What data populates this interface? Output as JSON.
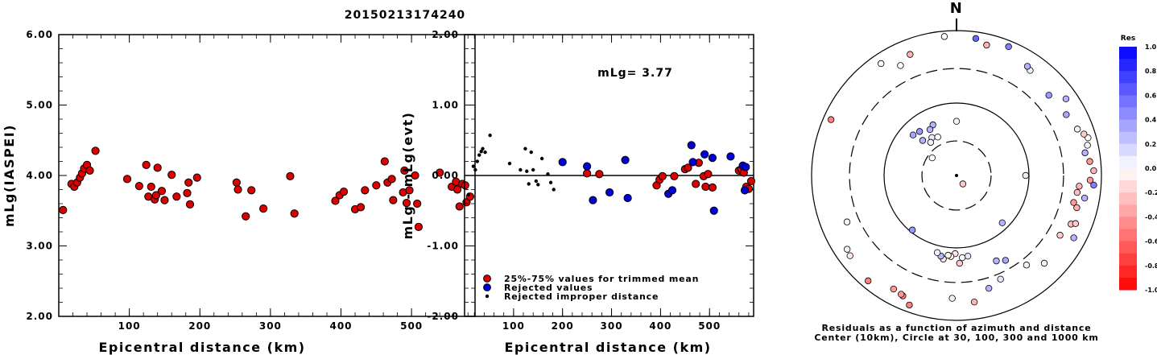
{
  "figure": {
    "title": "20150213174240"
  },
  "chart_data": [
    {
      "type": "scatter",
      "ylabel": "mLg(IASPEI)",
      "xlabel": "Epicentral distance (km)",
      "xlim": [
        0,
        590
      ],
      "ylim": [
        2.0,
        6.0
      ],
      "xticks": [
        {
          "v": 100,
          "label": "100"
        },
        {
          "v": 200,
          "label": "200"
        },
        {
          "v": 300,
          "label": "300"
        },
        {
          "v": 400,
          "label": "400"
        },
        {
          "v": 500,
          "label": "500"
        }
      ],
      "yticks": [
        {
          "v": 2,
          "label": "2.00"
        },
        {
          "v": 3,
          "label": "3.00"
        },
        {
          "v": 4,
          "label": "4.00"
        },
        {
          "v": 5,
          "label": "5.00"
        },
        {
          "v": 6,
          "label": "6.00"
        }
      ],
      "series": [
        {
          "color": "#dd0000",
          "points": [
            [
              6,
              3.51
            ],
            [
              18,
              3.88
            ],
            [
              22,
              3.84
            ],
            [
              26,
              3.9
            ],
            [
              30,
              3.97
            ],
            [
              33,
              4.03
            ],
            [
              36,
              4.1
            ],
            [
              40,
              4.15
            ],
            [
              44,
              4.07
            ],
            [
              52,
              4.35
            ],
            [
              97,
              3.95
            ],
            [
              114,
              3.85
            ],
            [
              124,
              4.15
            ],
            [
              127,
              3.7
            ],
            [
              131,
              3.84
            ],
            [
              136,
              3.66
            ],
            [
              138,
              3.72
            ],
            [
              140,
              4.11
            ],
            [
              146,
              3.78
            ],
            [
              150,
              3.65
            ],
            [
              160,
              4.01
            ],
            [
              167,
              3.7
            ],
            [
              182,
              3.75
            ],
            [
              184,
              3.9
            ],
            [
              186,
              3.59
            ],
            [
              196,
              3.97
            ],
            [
              252,
              3.9
            ],
            [
              254,
              3.8
            ],
            [
              265,
              3.42
            ],
            [
              273,
              3.79
            ],
            [
              290,
              3.53
            ],
            [
              328,
              3.99
            ],
            [
              334,
              3.46
            ],
            [
              392,
              3.64
            ],
            [
              398,
              3.72
            ],
            [
              404,
              3.77
            ],
            [
              420,
              3.52
            ],
            [
              428,
              3.55
            ],
            [
              434,
              3.79
            ],
            [
              450,
              3.86
            ],
            [
              462,
              4.2
            ],
            [
              466,
              3.9
            ],
            [
              472,
              3.95
            ],
            [
              474,
              3.65
            ],
            [
              488,
              3.76
            ],
            [
              490,
              4.07
            ],
            [
              493,
              3.61
            ],
            [
              497,
              3.79
            ],
            [
              505,
              4.0
            ],
            [
              508,
              3.6
            ],
            [
              510,
              3.27
            ],
            [
              540,
              4.04
            ],
            [
              557,
              3.84
            ],
            [
              563,
              3.91
            ],
            [
              565,
              3.8
            ],
            [
              568,
              3.56
            ],
            [
              572,
              3.88
            ],
            [
              576,
              3.86
            ],
            [
              578,
              3.62
            ],
            [
              583,
              3.7
            ]
          ]
        }
      ]
    },
    {
      "type": "scatter",
      "ylabel": "mLg - mLg(evt)",
      "xlabel": "Epicentral distance (km)",
      "xlim": [
        0,
        590
      ],
      "ylim": [
        -2.0,
        2.0
      ],
      "xticks": [
        {
          "v": 100,
          "label": "100"
        },
        {
          "v": 200,
          "label": "200"
        },
        {
          "v": 300,
          "label": "300"
        },
        {
          "v": 400,
          "label": "400"
        },
        {
          "v": 500,
          "label": "500"
        }
      ],
      "yticks": [
        {
          "v": -2,
          "label": "-2.00"
        },
        {
          "v": -1,
          "label": "-1.00"
        },
        {
          "v": 0,
          "label": "0.00"
        },
        {
          "v": 1,
          "label": "1.00"
        },
        {
          "v": 2,
          "label": "2.00"
        }
      ],
      "annotation": "mLg= 3.77",
      "zero_line": 0,
      "legend": [
        {
          "label": "25%-75% values for trimmed mean",
          "color": "#dd0000",
          "marker": "circle"
        },
        {
          "label": "Rejected values",
          "color": "#0000dd",
          "marker": "circle"
        },
        {
          "label": "Rejected improper distance",
          "color": "#000000",
          "marker": "dot"
        }
      ],
      "series": [
        {
          "name": "25%-75% values for trimmed mean",
          "color": "#dd0000",
          "marker": "circle",
          "points": [
            [
              250,
              0.03
            ],
            [
              275,
              0.02
            ],
            [
              392,
              -0.14
            ],
            [
              398,
              -0.06
            ],
            [
              404,
              -0.01
            ],
            [
              428,
              -0.01
            ],
            [
              450,
              0.09
            ],
            [
              456,
              0.11
            ],
            [
              472,
              -0.12
            ],
            [
              478,
              0.18
            ],
            [
              488,
              -0.01
            ],
            [
              492,
              -0.16
            ],
            [
              497,
              0.02
            ],
            [
              506,
              -0.17
            ],
            [
              560,
              0.07
            ],
            [
              565,
              0.09
            ],
            [
              570,
              0.04
            ],
            [
              575,
              -0.16
            ],
            [
              580,
              -0.19
            ],
            [
              585,
              -0.08
            ]
          ]
        },
        {
          "name": "Rejected values",
          "color": "#0000dd",
          "marker": "circle",
          "points": [
            [
              200,
              0.19
            ],
            [
              250,
              0.13
            ],
            [
              262,
              -0.35
            ],
            [
              296,
              -0.24
            ],
            [
              328,
              0.22
            ],
            [
              333,
              -0.32
            ],
            [
              416,
              -0.26
            ],
            [
              424,
              -0.21
            ],
            [
              463,
              0.43
            ],
            [
              466,
              0.19
            ],
            [
              490,
              0.3
            ],
            [
              506,
              0.25
            ],
            [
              509,
              -0.5
            ],
            [
              543,
              0.27
            ],
            [
              568,
              0.14
            ],
            [
              572,
              -0.21
            ],
            [
              574,
              0.12
            ]
          ]
        },
        {
          "name": "Rejected improper distance",
          "color": "#000000",
          "marker": "dot",
          "points": [
            [
              8,
              -0.27
            ],
            [
              18,
              0.13
            ],
            [
              22,
              0.08
            ],
            [
              26,
              0.2
            ],
            [
              30,
              0.29
            ],
            [
              34,
              0.34
            ],
            [
              37,
              0.38
            ],
            [
              42,
              0.33
            ],
            [
              52,
              0.57
            ],
            [
              92,
              0.17
            ],
            [
              114,
              0.08
            ],
            [
              124,
              0.38
            ],
            [
              127,
              0.06
            ],
            [
              131,
              -0.12
            ],
            [
              136,
              0.33
            ],
            [
              140,
              0.08
            ],
            [
              146,
              -0.08
            ],
            [
              150,
              -0.13
            ],
            [
              158,
              0.24
            ],
            [
              170,
              0.02
            ],
            [
              176,
              -0.1
            ],
            [
              182,
              -0.2
            ]
          ]
        }
      ]
    },
    {
      "type": "scatter",
      "subtype": "polar",
      "north_label": "N",
      "caption_line1": "Residuals as a function of azimuth and distance",
      "caption_line2": "Center (10km), Circle at 30, 100, 300 and 1000 km",
      "rings_km": [
        30,
        100,
        300,
        1000
      ],
      "colorbar": {
        "title": "Res",
        "range": [
          -1.0,
          1.0
        ],
        "ticks": [
          {
            "v": 1.0,
            "label": "1.0"
          },
          {
            "v": 0.8,
            "label": "0.8"
          },
          {
            "v": 0.6,
            "label": "0.6"
          },
          {
            "v": 0.4,
            "label": "0.4"
          },
          {
            "v": 0.2,
            "label": "0.2"
          },
          {
            "v": 0.0,
            "label": "0.0"
          },
          {
            "v": -0.2,
            "label": "-0.2"
          },
          {
            "v": -0.4,
            "label": "-0.4"
          },
          {
            "v": -0.6,
            "label": "-0.6"
          },
          {
            "v": -0.8,
            "label": "-0.8"
          },
          {
            "v": -1.0,
            "label": "-1.0"
          }
        ],
        "positive_color": "#0000ff",
        "negative_color": "#ff0000"
      },
      "stations": [
        {
          "azimuth": 143,
          "distance_km": 14,
          "residual": -0.2
        },
        {
          "azimuth": 306,
          "distance_km": 26,
          "residual": 0.0
        },
        {
          "azimuth": 327,
          "distance_km": 42,
          "residual": 0.05
        },
        {
          "azimuth": 0,
          "distance_km": 56,
          "residual": 0.05
        },
        {
          "azimuth": 335,
          "distance_km": 59,
          "residual": 0.3
        },
        {
          "azimuth": 330,
          "distance_km": 54,
          "residual": 0.3
        },
        {
          "azimuth": 320,
          "distance_km": 62,
          "residual": 0.4
        },
        {
          "azimuth": 313,
          "distance_km": 66,
          "residual": 0.35
        },
        {
          "azimuth": 316,
          "distance_km": 47,
          "residual": 0.3
        },
        {
          "azimuth": 322,
          "distance_km": 38,
          "residual": 0.05
        },
        {
          "azimuth": 334,
          "distance_km": 39,
          "residual": 0.0
        },
        {
          "azimuth": 90,
          "distance_km": 90,
          "residual": 0.05
        },
        {
          "azimuth": 136,
          "distance_km": 81,
          "residual": 0.3
        },
        {
          "azimuth": 219,
          "distance_km": 93,
          "residual": 0.4
        },
        {
          "azimuth": 155,
          "distance_km": 200,
          "residual": 0.3
        },
        {
          "azimuth": 150,
          "distance_km": 225,
          "residual": 0.35
        },
        {
          "azimuth": 172,
          "distance_km": 133,
          "residual": 0.1
        },
        {
          "azimuth": 176,
          "distance_km": 137,
          "residual": 0.05
        },
        {
          "azimuth": 178,
          "distance_km": 163,
          "residual": -0.2
        },
        {
          "azimuth": 181,
          "distance_km": 120,
          "residual": -0.1
        },
        {
          "azimuth": 184,
          "distance_km": 132,
          "residual": 0.0
        },
        {
          "azimuth": 186,
          "distance_km": 128,
          "residual": -0.05
        },
        {
          "azimuth": 189,
          "distance_km": 147,
          "residual": -0.1
        },
        {
          "azimuth": 191,
          "distance_km": 136,
          "residual": 0.3
        },
        {
          "azimuth": 194,
          "distance_km": 125,
          "residual": 0.05
        },
        {
          "azimuth": 157,
          "distance_km": 359,
          "residual": 0.1
        },
        {
          "azimuth": 164,
          "distance_km": 417,
          "residual": 0.3
        },
        {
          "azimuth": 182,
          "distance_km": 497,
          "residual": 0.05
        },
        {
          "azimuth": 172,
          "distance_km": 580,
          "residual": -0.3
        },
        {
          "azimuth": 142,
          "distance_km": 370,
          "residual": 0.05
        },
        {
          "azimuth": 135,
          "distance_km": 516,
          "residual": 0.05
        },
        {
          "azimuth": 120,
          "distance_km": 446,
          "residual": -0.2
        },
        {
          "azimuth": 113,
          "distance_km": 521,
          "residual": -0.25
        },
        {
          "azimuth": 112,
          "distance_km": 591,
          "residual": -0.2
        },
        {
          "azimuth": 118,
          "distance_km": 680,
          "residual": 0.3
        },
        {
          "azimuth": 103,
          "distance_km": 456,
          "residual": -0.4
        },
        {
          "azimuth": 105,
          "distance_km": 523,
          "residual": -0.3
        },
        {
          "azimuth": 98,
          "distance_km": 480,
          "residual": -0.25
        },
        {
          "azimuth": 95,
          "distance_km": 501,
          "residual": -0.3
        },
        {
          "azimuth": 100,
          "distance_km": 624,
          "residual": 0.3
        },
        {
          "azimuth": 92,
          "distance_km": 700,
          "residual": -0.4
        },
        {
          "azimuth": 94,
          "distance_km": 791,
          "residual": 0.5
        },
        {
          "azimuth": 88,
          "distance_km": 784,
          "residual": -0.3
        },
        {
          "azimuth": 84,
          "distance_km": 707,
          "residual": -0.4
        },
        {
          "azimuth": 80,
          "distance_km": 632,
          "residual": 0.3
        },
        {
          "azimuth": 77,
          "distance_km": 715,
          "residual": 0.05
        },
        {
          "azimuth": 74,
          "distance_km": 773,
          "residual": 0.0
        },
        {
          "azimuth": 72,
          "distance_km": 706,
          "residual": -0.2
        },
        {
          "azimuth": 69,
          "distance_km": 612,
          "residual": 0.05
        },
        {
          "azimuth": 61,
          "distance_km": 539,
          "residual": 0.35
        },
        {
          "azimuth": 55,
          "distance_km": 698,
          "residual": 0.3
        },
        {
          "azimuth": 49,
          "distance_km": 488,
          "residual": 0.4
        },
        {
          "azimuth": 35,
          "distance_km": 590,
          "residual": 0.05
        },
        {
          "azimuth": 33,
          "distance_km": 626,
          "residual": 0.3
        },
        {
          "azimuth": 22,
          "distance_km": 828,
          "residual": 0.5
        },
        {
          "azimuth": 13,
          "distance_km": 704,
          "residual": -0.3
        },
        {
          "azimuth": 8,
          "distance_km": 812,
          "residual": 0.6
        },
        {
          "azimuth": 355,
          "distance_km": 842,
          "residual": 0.0
        },
        {
          "azimuth": 339,
          "distance_km": 616,
          "residual": -0.3
        },
        {
          "azimuth": 333,
          "distance_km": 505,
          "residual": 0.0
        },
        {
          "azimuth": 326,
          "distance_km": 730,
          "residual": 0.0
        },
        {
          "azimuth": 294,
          "distance_km": 787,
          "residual": -0.5
        },
        {
          "azimuth": 247,
          "distance_km": 438,
          "residual": -0.05
        },
        {
          "azimuth": 233,
          "distance_km": 692,
          "residual": -0.1
        },
        {
          "azimuth": 236,
          "distance_km": 662,
          "residual": 0.05
        },
        {
          "azimuth": 209,
          "distance_km": 619,
          "residual": -0.4
        },
        {
          "azimuth": 204,
          "distance_km": 660,
          "residual": -0.5
        },
        {
          "azimuth": 205,
          "distance_km": 644,
          "residual": -0.4
        },
        {
          "azimuth": 200,
          "distance_km": 799,
          "residual": -0.5
        },
        {
          "azimuth": 220,
          "distance_km": 791,
          "residual": -0.5
        }
      ]
    }
  ]
}
